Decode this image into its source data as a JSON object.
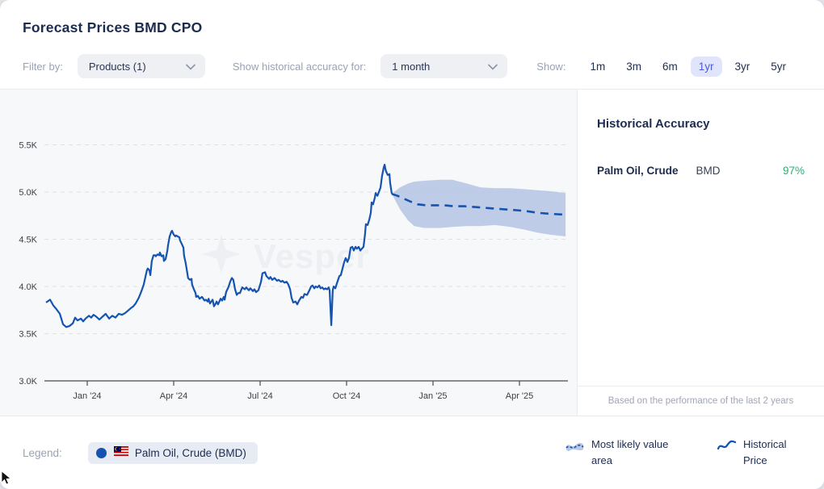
{
  "header": {
    "title": "Forecast Prices BMD CPO",
    "filter_by_label": "Filter by:",
    "products_dropdown_value": "Products (1)",
    "accuracy_label": "Show historical accuracy for:",
    "accuracy_dropdown_value": "1 month",
    "show_label": "Show:",
    "range_options": [
      "1m",
      "3m",
      "6m",
      "1yr",
      "3yr",
      "5yr"
    ],
    "selected_range": "1yr"
  },
  "sidebar": {
    "title": "Historical Accuracy",
    "rows": [
      {
        "product": "Palm Oil, Crude",
        "exchange": "BMD",
        "accuracy": "97%"
      }
    ],
    "footnote": "Based on the performance of the last 2 years"
  },
  "legend": {
    "label": "Legend:",
    "series_chip": "Palm Oil, Crude (BMD)",
    "area_label": "Most likely value area",
    "line_label": "Historical Price"
  },
  "watermark": "Vesper",
  "colors": {
    "navy": "#1c2b50",
    "gray_label": "#9aa3b3",
    "line_blue": "#1553b1",
    "band_blue": "#b7c7e4",
    "accuracy_green": "#2cb178",
    "selected_pill_bg": "#e0e5fc",
    "selected_pill_text": "#4a5bd7",
    "pill_bg": "#eef0f4",
    "border": "#e9eaee"
  },
  "chart_data": {
    "type": "line",
    "title": "Forecast Prices BMD CPO",
    "x_unit": "months since Jan 2024",
    "ylim": [
      3.0,
      5.75
    ],
    "grid": "horizontal-dashed",
    "yticks": [
      {
        "v": 3.0,
        "label": "3.0K"
      },
      {
        "v": 3.5,
        "label": "3.5K"
      },
      {
        "v": 4.0,
        "label": "4.0K"
      },
      {
        "v": 4.5,
        "label": "4.5K"
      },
      {
        "v": 5.0,
        "label": "5.0K"
      },
      {
        "v": 5.5,
        "label": "5.5K"
      }
    ],
    "xticks": [
      {
        "m": 0,
        "label": "Jan '24"
      },
      {
        "m": 3,
        "label": "Apr '24"
      },
      {
        "m": 6,
        "label": "Jul '24"
      },
      {
        "m": 9,
        "label": "Oct '24"
      },
      {
        "m": 12,
        "label": "Jan '25"
      },
      {
        "m": 15,
        "label": "Apr '25"
      }
    ],
    "series": [
      {
        "name": "Historical Price",
        "style": "solid",
        "x": [
          -1.43,
          -1.29,
          -1.18,
          -1.07,
          -0.95,
          -0.84,
          -0.73,
          -0.62,
          -0.5,
          -0.42,
          -0.34,
          -0.22,
          -0.14,
          -0.06,
          0.06,
          0.14,
          0.22,
          0.31,
          0.42,
          0.53,
          0.64,
          0.76,
          0.87,
          0.98,
          1.09,
          1.21,
          1.32,
          1.4,
          1.51,
          1.6,
          1.68,
          1.79,
          1.88,
          1.96,
          2.02,
          2.07,
          2.1,
          2.16,
          2.19,
          2.24,
          2.3,
          2.36,
          2.38,
          2.44,
          2.5,
          2.52,
          2.58,
          2.64,
          2.66,
          2.72,
          2.78,
          2.8,
          2.86,
          2.92,
          2.94,
          3.0,
          3.06,
          3.08,
          3.14,
          3.2,
          3.22,
          3.28,
          3.34,
          3.36,
          3.42,
          3.48,
          3.5,
          3.56,
          3.62,
          3.64,
          3.7,
          3.76,
          3.78,
          3.84,
          3.9,
          3.98,
          4.07,
          4.12,
          4.18,
          4.21,
          4.26,
          4.35,
          4.4,
          4.46,
          4.49,
          4.54,
          4.63,
          4.68,
          4.74,
          4.77,
          4.82,
          4.91,
          4.96,
          5.02,
          5.07,
          5.13,
          5.19,
          5.24,
          5.3,
          5.38,
          5.47,
          5.52,
          5.61,
          5.66,
          5.75,
          5.8,
          5.86,
          5.94,
          6.03,
          6.08,
          6.17,
          6.22,
          6.31,
          6.36,
          6.42,
          6.5,
          6.59,
          6.64,
          6.73,
          6.78,
          6.84,
          6.92,
          6.98,
          7.04,
          7.09,
          7.15,
          7.23,
          7.29,
          7.35,
          7.43,
          7.49,
          7.54,
          7.63,
          7.71,
          7.77,
          7.82,
          7.88,
          7.93,
          7.99,
          8.05,
          8.1,
          8.16,
          8.21,
          8.27,
          8.33,
          8.38,
          8.41,
          8.47,
          8.52,
          8.55,
          8.61,
          8.66,
          8.75,
          8.8,
          8.86,
          8.92,
          8.97,
          9.03,
          9.08,
          9.14,
          9.2,
          9.25,
          9.31,
          9.36,
          9.42,
          9.48,
          9.53,
          9.59,
          9.64,
          9.67,
          9.73,
          9.79,
          9.84,
          9.87,
          9.92,
          9.98,
          10.01,
          10.07,
          10.12,
          10.18,
          10.23,
          10.29,
          10.32,
          10.35,
          10.37,
          10.43,
          10.49,
          10.51,
          10.57
        ],
        "y": [
          3.83,
          3.86,
          3.8,
          3.76,
          3.71,
          3.6,
          3.57,
          3.58,
          3.61,
          3.67,
          3.64,
          3.66,
          3.63,
          3.66,
          3.69,
          3.67,
          3.7,
          3.68,
          3.65,
          3.68,
          3.71,
          3.66,
          3.69,
          3.67,
          3.71,
          3.7,
          3.72,
          3.74,
          3.77,
          3.79,
          3.82,
          3.88,
          3.95,
          4.02,
          4.1,
          4.17,
          4.19,
          4.17,
          4.12,
          4.27,
          4.33,
          4.33,
          4.32,
          4.34,
          4.33,
          4.36,
          4.32,
          4.33,
          4.27,
          4.29,
          4.38,
          4.43,
          4.53,
          4.58,
          4.59,
          4.55,
          4.53,
          4.54,
          4.53,
          4.52,
          4.49,
          4.45,
          4.41,
          4.33,
          4.24,
          4.13,
          4.09,
          4.07,
          4.08,
          4.02,
          3.97,
          3.93,
          3.89,
          3.9,
          3.87,
          3.89,
          3.85,
          3.86,
          3.84,
          3.87,
          3.82,
          3.86,
          3.79,
          3.82,
          3.84,
          3.81,
          3.87,
          3.85,
          3.89,
          3.86,
          3.94,
          4.0,
          4.05,
          4.09,
          4.07,
          3.97,
          3.91,
          3.93,
          3.93,
          3.99,
          3.97,
          3.99,
          3.96,
          3.98,
          3.95,
          3.97,
          3.94,
          3.96,
          4.05,
          4.14,
          4.15,
          4.11,
          4.08,
          4.1,
          4.07,
          4.09,
          4.06,
          4.07,
          4.05,
          4.06,
          4.04,
          4.05,
          4.02,
          3.97,
          3.88,
          3.83,
          3.84,
          3.81,
          3.85,
          3.89,
          3.88,
          3.92,
          3.91,
          3.96,
          4.0,
          4.01,
          3.98,
          4.0,
          3.99,
          4.01,
          3.98,
          3.99,
          3.97,
          3.98,
          3.97,
          3.99,
          3.96,
          3.59,
          3.96,
          4.0,
          3.98,
          4.03,
          4.11,
          4.12,
          4.19,
          4.26,
          4.3,
          4.26,
          4.3,
          4.41,
          4.42,
          4.38,
          4.42,
          4.4,
          4.42,
          4.38,
          4.4,
          4.42,
          4.55,
          4.66,
          4.65,
          4.71,
          4.78,
          4.89,
          4.87,
          4.94,
          4.99,
          4.96,
          5.0,
          5.05,
          5.17,
          5.26,
          5.29,
          5.24,
          5.22,
          5.18,
          5.19,
          5.1,
          4.98
        ]
      },
      {
        "name": "Forecast (most likely value)",
        "style": "dashed",
        "x": [
          10.57,
          10.77,
          10.99,
          11.21,
          11.47,
          11.75,
          12.05,
          12.39,
          12.73,
          13.09,
          13.51,
          13.93,
          14.35,
          14.77,
          15.2,
          15.62,
          16.04,
          16.6
        ],
        "y": [
          4.98,
          4.96,
          4.93,
          4.9,
          4.87,
          4.86,
          4.86,
          4.86,
          4.85,
          4.85,
          4.84,
          4.83,
          4.82,
          4.81,
          4.8,
          4.78,
          4.77,
          4.76
        ]
      }
    ],
    "band": {
      "name": "Most likely value area",
      "x": [
        10.57,
        10.85,
        11.13,
        11.35,
        11.69,
        12.25,
        12.67,
        13.18,
        13.65,
        14.16,
        14.69,
        15.2,
        15.62,
        16.04,
        16.6
      ],
      "upper": [
        4.98,
        5.05,
        5.09,
        5.11,
        5.12,
        5.13,
        5.13,
        5.09,
        5.05,
        5.04,
        5.04,
        5.03,
        5.02,
        5.01,
        4.99
      ],
      "lower": [
        4.98,
        4.82,
        4.7,
        4.64,
        4.62,
        4.62,
        4.63,
        4.64,
        4.64,
        4.65,
        4.63,
        4.6,
        4.57,
        4.55,
        4.53
      ]
    }
  }
}
